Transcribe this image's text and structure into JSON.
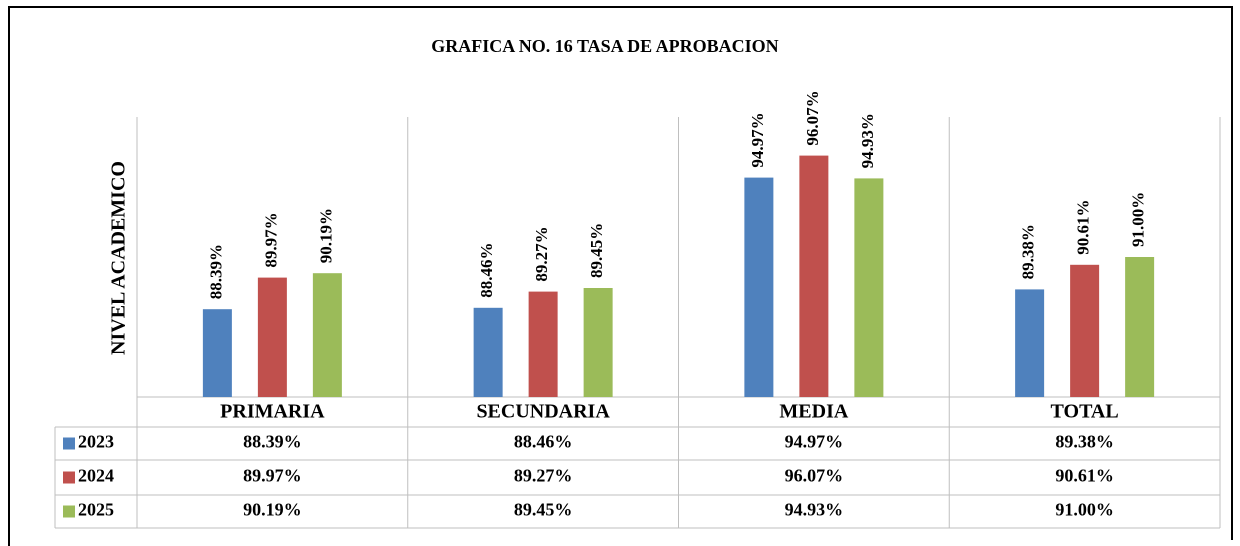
{
  "chart_data": {
    "type": "bar",
    "title": "GRAFICA NO. 16 TASA DE APROBACION",
    "ylabel": "NIVEL ACADEMICO",
    "categories": [
      "PRIMARIA",
      "SECUNDARIA",
      "MEDIA",
      "TOTAL"
    ],
    "series": [
      {
        "name": "2023",
        "color": "#4f81bd",
        "values": [
          88.39,
          88.46,
          94.97,
          89.38
        ],
        "value_labels": [
          "88.39%",
          "88.46%",
          "94.97%",
          "89.38%"
        ]
      },
      {
        "name": "2024",
        "color": "#c0504d",
        "values": [
          89.97,
          89.27,
          96.07,
          90.61
        ],
        "value_labels": [
          "89.97%",
          "89.27%",
          "96.07%",
          "90.61%"
        ]
      },
      {
        "name": "2025",
        "color": "#9bbb59",
        "values": [
          90.19,
          89.45,
          94.93,
          91.0
        ],
        "value_labels": [
          "90.19%",
          "89.45%",
          "94.93%",
          "91.00%"
        ]
      }
    ],
    "ylim": [
      84,
      98
    ]
  }
}
